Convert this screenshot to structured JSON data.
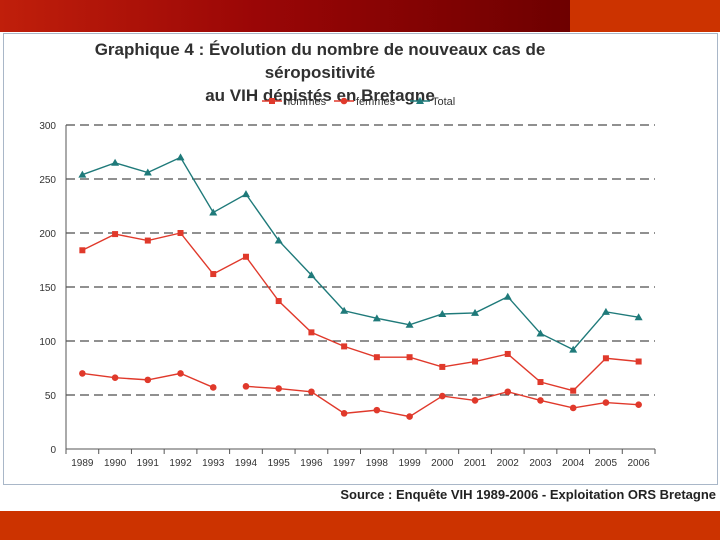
{
  "slide": {
    "source": "Source : Enquête VIH  1989-2006 - Exploitation ORS Bretagne",
    "colors": {
      "topbar": "#9a0606",
      "accent": "#cc3300"
    }
  },
  "chart_data": {
    "type": "line",
    "title_line1": "Graphique 4 : Évolution du nombre de nouveaux cas de séropositivité",
    "title_line2": "au VIH dépistés en Bretagne",
    "xlabel": "",
    "ylabel": "",
    "ylim": [
      0,
      300
    ],
    "yticks": [
      "0",
      "50",
      "100",
      "150",
      "200",
      "250",
      "300"
    ],
    "grid": "dashed horizontal",
    "legend_position": "top",
    "categories": [
      "1989",
      "1990",
      "1991",
      "1992",
      "1993",
      "1994",
      "1995",
      "1996",
      "1997",
      "1998",
      "1999",
      "2000",
      "2001",
      "2002",
      "2003",
      "2004",
      "2005",
      "2006"
    ],
    "series": [
      {
        "name": "hommes",
        "color": "#e0392b",
        "marker": "square",
        "values": [
          184,
          199,
          193,
          200,
          162,
          178,
          137,
          108,
          95,
          85,
          85,
          76,
          81,
          88,
          62,
          54,
          84,
          81
        ]
      },
      {
        "name": "femmes",
        "color": "#e0392b",
        "marker": "circle",
        "values": [
          70,
          66,
          64,
          70,
          57,
          58,
          56,
          53,
          33,
          36,
          30,
          49,
          45,
          53,
          45,
          38,
          43,
          41
        ],
        "gap_after_index": 4
      },
      {
        "name": "Total",
        "color": "#1f7a7a",
        "marker": "triangle",
        "values": [
          254,
          265,
          256,
          270,
          219,
          236,
          193,
          161,
          128,
          121,
          115,
          125,
          126,
          141,
          107,
          92,
          127,
          122
        ]
      }
    ]
  }
}
